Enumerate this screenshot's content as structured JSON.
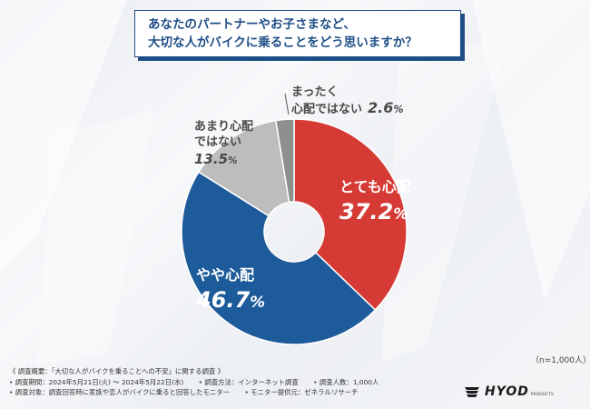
{
  "title": {
    "line1": "あなたのパートナーやお子さまなど、",
    "line2": "大切な人がバイクに乗ることをどう思いますか？"
  },
  "chart_data": {
    "type": "pie",
    "donut": true,
    "categories": [
      "とても心配",
      "やや心配",
      "あまり心配ではない",
      "まったく心配ではない"
    ],
    "values": [
      37.2,
      46.7,
      13.5,
      2.6
    ],
    "colors": [
      "#d63a35",
      "#1d5b9a",
      "#bdbdbd",
      "#8f8f8f"
    ],
    "labels": [
      {
        "line1": "とても心配",
        "line2": "",
        "value": "37.2",
        "unit": "%"
      },
      {
        "line1": "やや心配",
        "line2": "",
        "value": "46.7",
        "unit": "%"
      },
      {
        "line1": "あまり心配",
        "line2": "ではない",
        "value": "13.5",
        "unit": "%"
      },
      {
        "line1": "まったく",
        "line2": "心配ではない",
        "value": "2.6",
        "unit": "%"
      }
    ]
  },
  "n_note": "（n=1,000人）",
  "footer": {
    "line1": "《 調査概要：「大切な人がバイクを乗ることへの不安」に関する調査 》",
    "line2a": "• 調査期間：2024年5月21日(火) ～ 2024年5月22日(水)",
    "line2b": "• 調査方法：インターネット調査",
    "line2c": "• 調査人数：1,000人",
    "line3a": "• 調査対象：調査回答時に家族や恋人がバイクに乗ると回答したモニター",
    "line3b": "• モニター提供元：ゼネラルリサーチ"
  },
  "logo": {
    "text": "HYOD",
    "sub": "PRODUCTS"
  }
}
